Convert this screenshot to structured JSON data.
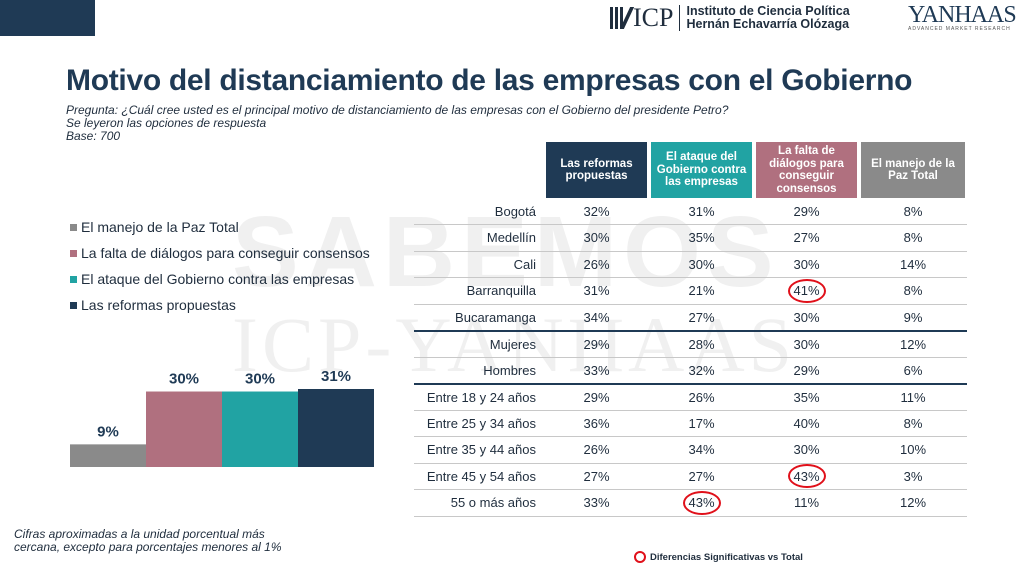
{
  "header": {
    "logo_icp": "ICP",
    "institute_line1": "Instituto de Ciencia Política",
    "institute_line2": "Hernán Echavarría Olózaga",
    "logo_yanhaas": "YANHAAS",
    "yanhaas_tagline": "ADVANCED MARKET RESEARCH"
  },
  "title": "Motivo del distanciamiento de las empresas con el Gobierno",
  "question": "Pregunta: ¿Cuál cree usted es el principal motivo de distanciamiento de las empresas con el Gobierno del presidente Petro?",
  "read_options": "Se leyeron las opciones de respuesta",
  "base": "Base: 700",
  "watermark_1": "SABEMOS",
  "watermark_2": "ICP-YANHAAS",
  "footnote_line1": "Cifras aproximadas a la unidad porcentual más",
  "footnote_line2": "cercana, excepto para porcentajes menores al 1%",
  "significance_legend": "Diferencias Significativas vs Total",
  "colors": {
    "gray": "#8a8a8a",
    "pink": "#b0707f",
    "teal": "#21a3a3",
    "navy": "#1f3a55",
    "highlight": "#e0101a"
  },
  "chart_data": [
    {
      "type": "bar",
      "categories": [
        "El manejo de la Paz Total",
        "La falta de diálogos para conseguir consensos",
        "El ataque del Gobierno contra las empresas",
        "Las reformas propuestas"
      ],
      "values": [
        9,
        30,
        30,
        31
      ],
      "value_labels": [
        "9%",
        "30%",
        "30%",
        "31%"
      ],
      "colors": [
        "#8a8a8a",
        "#b0707f",
        "#21a3a3",
        "#1f3a55"
      ],
      "legend_order": [
        "El manejo de la Paz Total",
        "La falta de diálogos para conseguir consensos",
        "El ataque del Gobierno contra las empresas",
        "Las reformas propuestas"
      ],
      "legend_placement": "top-left",
      "unit": "%",
      "ylim": [
        0,
        35
      ]
    },
    {
      "type": "table",
      "columns": [
        {
          "label": "Las reformas propuestas",
          "color": "#1f3a55"
        },
        {
          "label": "El ataque del Gobierno contra las empresas",
          "color": "#21a3a3"
        },
        {
          "label": "La falta de diálogos para conseguir consensos",
          "color": "#b0707f"
        },
        {
          "label": "El manejo de la Paz Total",
          "color": "#8a8a8a"
        }
      ],
      "rows": [
        {
          "label": "Bogotá",
          "values": [
            "32%",
            "31%",
            "29%",
            "8%"
          ],
          "circled": []
        },
        {
          "label": "Medellín",
          "values": [
            "30%",
            "35%",
            "27%",
            "8%"
          ],
          "circled": []
        },
        {
          "label": "Cali",
          "values": [
            "26%",
            "30%",
            "30%",
            "14%"
          ],
          "circled": []
        },
        {
          "label": "Barranquilla",
          "values": [
            "31%",
            "21%",
            "41%",
            "8%"
          ],
          "circled": [
            2
          ]
        },
        {
          "label": "Bucaramanga",
          "values": [
            "34%",
            "27%",
            "30%",
            "9%"
          ],
          "circled": []
        },
        {
          "label": "Mujeres",
          "values": [
            "29%",
            "28%",
            "30%",
            "12%"
          ],
          "circled": [],
          "group_start": true
        },
        {
          "label": "Hombres",
          "values": [
            "33%",
            "32%",
            "29%",
            "6%"
          ],
          "circled": []
        },
        {
          "label": "Entre 18 y 24 años",
          "values": [
            "29%",
            "26%",
            "35%",
            "11%"
          ],
          "circled": [],
          "group_start": true
        },
        {
          "label": "Entre 25 y 34 años",
          "values": [
            "36%",
            "17%",
            "40%",
            "8%"
          ],
          "circled": []
        },
        {
          "label": "Entre 35 y 44 años",
          "values": [
            "26%",
            "34%",
            "30%",
            "10%"
          ],
          "circled": []
        },
        {
          "label": "Entre 45 y 54 años",
          "values": [
            "27%",
            "27%",
            "43%",
            "3%"
          ],
          "circled": [
            2
          ]
        },
        {
          "label": "55 o más años",
          "values": [
            "33%",
            "43%",
            "11%",
            "12%"
          ],
          "circled": [
            1
          ]
        }
      ]
    }
  ]
}
